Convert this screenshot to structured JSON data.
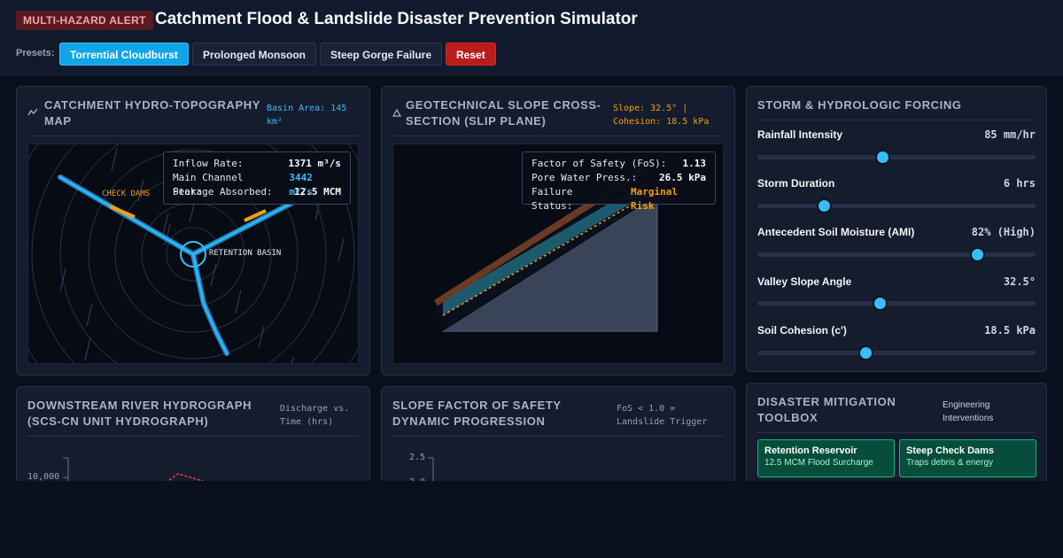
{
  "header": {
    "alert_badge": "MULTI-HAZARD ALERT",
    "title": "Catchment Flood & Landslide Disaster Prevention Simulator",
    "presets_label": "Presets:",
    "presets": [
      "Torrential Cloudburst",
      "Prolonged Monsoon",
      "Steep Gorge Failure"
    ],
    "active_preset": "Torrential Cloudburst",
    "reset_label": "Reset"
  },
  "map_panel": {
    "title_line1": "CATCHMENT HYDRO-TOPOGRAPHY",
    "title_line2": "MAP",
    "sub_line1": "Basin Area: 145",
    "sub_line2": "km²",
    "check_dams_label": "CHECK DAMS",
    "basin_label": "RETENTION BASIN",
    "readout": [
      {
        "label": "Inflow Rate:",
        "value": "1371 m³/s"
      },
      {
        "label": "Main Channel Peak:",
        "value": "3442 m³/s"
      },
      {
        "label": "Storage Absorbed:",
        "value": "12.5 MCM"
      }
    ]
  },
  "slope_panel": {
    "title_line1": "GEOTECHNICAL SLOPE CROSS-",
    "title_line2": "SECTION (SLIP PLANE)",
    "sub_line1": "Slope: 32.5° |",
    "sub_line2": "Cohesion: 18.5 kPa",
    "readout": [
      {
        "label": "Factor of Safety (FoS):",
        "value": "1.13"
      },
      {
        "label": "Pore Water Press.:",
        "value": "26.5 kPa"
      },
      {
        "label": "Failure Status:",
        "value": "Marginal Risk"
      }
    ],
    "status_color": "#f59e0b"
  },
  "forcing_panel": {
    "title": "STORM & HYDROLOGIC FORCING",
    "controls": [
      {
        "label": "Rainfall Intensity",
        "value": "85 mm/hr",
        "level": 0.45
      },
      {
        "label": "Storm Duration",
        "value": "6 hrs",
        "level": 0.24
      },
      {
        "label": "Antecedent Soil Moisture (AMI)",
        "value": "82% (High)",
        "level": 0.79
      },
      {
        "label": "Valley Slope Angle",
        "value": "32.5°",
        "level": 0.44
      },
      {
        "label": "Soil Cohesion (c')",
        "value": "18.5 kPa",
        "level": 0.39
      }
    ]
  },
  "hydrograph_panel": {
    "title_line1": "DOWNSTREAM RIVER HYDROGRAPH",
    "title_line2": "(SCS-CN UNIT HYDROGRAPH)",
    "sub_line1": "Discharge vs.",
    "sub_line2": "Time (hrs)",
    "y_tick": "10,000"
  },
  "fos_panel": {
    "title_line1": "SLOPE FACTOR OF SAFETY",
    "title_line2": "DYNAMIC PROGRESSION",
    "sub_line1": "FoS < 1.0 =",
    "sub_line2": "Landslide Trigger",
    "y_ticks": [
      "2.5",
      "2.0"
    ]
  },
  "toolbox_panel": {
    "title_line1": "DISASTER MITIGATION",
    "title_line2": "TOOLBOX",
    "sub_line1": "Engineering",
    "sub_line2": "Interventions",
    "tools": [
      {
        "name": "Retention Reservoir",
        "desc": "12.5 MCM Flood Surcharge"
      },
      {
        "name": "Steep Check Dams",
        "desc": "Traps debris & energy"
      }
    ]
  }
}
